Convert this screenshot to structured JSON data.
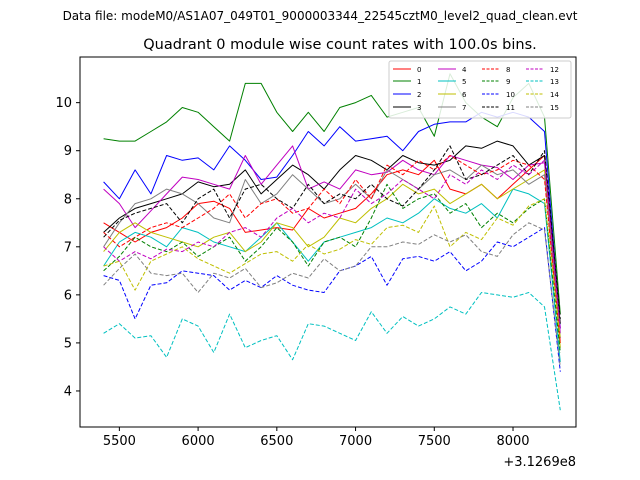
{
  "chart_data": {
    "type": "line",
    "suptitle": "Data file: modeM0/AS1A07_049T01_9000003344_22545cztM0_level2_quad_clean.evt",
    "title": "Quadrant 0 module wise count rates with 100.0s bins.",
    "xlabel": "",
    "ylabel": "",
    "x_offset_label": "+3.1269e8",
    "xlim": [
      5250,
      8400
    ],
    "ylim": [
      3.25,
      10.95
    ],
    "x_ticks": [
      5500,
      6000,
      6500,
      7000,
      7500,
      8000
    ],
    "y_ticks": [
      4,
      5,
      6,
      7,
      8,
      9,
      10
    ],
    "grid": false,
    "legend_position": "top-right",
    "x": [
      5400,
      5500,
      5600,
      5700,
      5800,
      5900,
      6000,
      6100,
      6200,
      6300,
      6400,
      6500,
      6600,
      6700,
      6800,
      6900,
      7000,
      7100,
      7200,
      7300,
      7400,
      7500,
      7600,
      7700,
      7800,
      7900,
      8000,
      8100,
      8200,
      8300
    ],
    "series": [
      {
        "name": "0",
        "color": "#ff0000",
        "dash": "solid",
        "values": [
          7.5,
          7.3,
          7.1,
          7.3,
          7.4,
          7.6,
          7.9,
          7.95,
          7.8,
          7.3,
          7.35,
          7.4,
          7.35,
          7.8,
          7.6,
          7.7,
          7.8,
          8.1,
          8.5,
          8.6,
          8.5,
          8.8,
          8.2,
          8.1,
          8.3,
          8.0,
          8.3,
          8.6,
          8.9,
          5.0
        ]
      },
      {
        "name": "1",
        "color": "#008000",
        "dash": "solid",
        "values": [
          9.25,
          9.2,
          9.2,
          9.4,
          9.6,
          9.9,
          9.8,
          9.5,
          9.2,
          10.4,
          10.4,
          9.8,
          9.4,
          9.8,
          9.4,
          9.9,
          10.0,
          10.15,
          9.7,
          9.8,
          9.9,
          9.3,
          10.6,
          10.0,
          9.7,
          9.5,
          10.1,
          10.4,
          9.7,
          5.6
        ]
      },
      {
        "name": "2",
        "color": "#0000ff",
        "dash": "solid",
        "values": [
          8.35,
          8.0,
          8.6,
          8.1,
          8.9,
          8.8,
          8.85,
          8.6,
          9.1,
          8.8,
          8.4,
          8.45,
          8.9,
          9.4,
          9.1,
          9.5,
          9.2,
          9.25,
          9.3,
          9.0,
          9.4,
          9.55,
          9.6,
          9.6,
          9.8,
          9.7,
          9.8,
          9.7,
          9.4,
          5.3
        ]
      },
      {
        "name": "3",
        "color": "#000000",
        "dash": "solid",
        "values": [
          7.3,
          7.6,
          7.8,
          7.9,
          8.0,
          8.1,
          8.35,
          8.25,
          8.3,
          8.6,
          8.1,
          8.4,
          8.7,
          8.5,
          8.2,
          8.6,
          8.9,
          8.8,
          8.6,
          8.9,
          8.75,
          8.7,
          8.8,
          9.1,
          9.05,
          9.2,
          9.1,
          8.7,
          8.9,
          5.4
        ]
      },
      {
        "name": "4",
        "color": "#c000c0",
        "dash": "solid",
        "values": [
          8.2,
          7.9,
          7.4,
          7.75,
          8.1,
          8.45,
          8.4,
          8.3,
          8.2,
          8.9,
          8.3,
          8.7,
          9.1,
          8.2,
          8.35,
          8.2,
          8.6,
          8.5,
          8.55,
          8.8,
          8.6,
          8.5,
          8.9,
          8.8,
          8.7,
          8.65,
          8.4,
          8.7,
          8.75,
          5.2
        ]
      },
      {
        "name": "5",
        "color": "#00c0c0",
        "dash": "solid",
        "values": [
          6.6,
          7.1,
          7.3,
          7.2,
          7.0,
          7.4,
          7.3,
          7.1,
          7.0,
          6.9,
          7.2,
          7.5,
          7.1,
          6.7,
          7.1,
          7.2,
          7.3,
          7.4,
          7.6,
          7.5,
          7.7,
          8.0,
          7.8,
          7.7,
          7.9,
          7.6,
          8.2,
          8.1,
          7.9,
          4.6
        ]
      },
      {
        "name": "6",
        "color": "#bfbf00",
        "dash": "solid",
        "values": [
          6.9,
          7.3,
          7.5,
          7.3,
          7.2,
          7.1,
          7.0,
          7.2,
          7.3,
          6.9,
          7.1,
          7.5,
          7.4,
          7.0,
          7.2,
          7.6,
          7.5,
          7.8,
          8.0,
          8.3,
          8.1,
          8.2,
          7.9,
          8.1,
          8.3,
          8.0,
          8.2,
          8.4,
          8.6,
          4.9
        ]
      },
      {
        "name": "7",
        "color": "#808080",
        "dash": "solid",
        "values": [
          7.0,
          7.5,
          7.9,
          8.0,
          8.2,
          8.1,
          7.9,
          7.6,
          7.5,
          8.4,
          7.9,
          8.1,
          8.5,
          8.2,
          7.9,
          8.0,
          8.3,
          8.0,
          8.6,
          8.4,
          8.2,
          8.5,
          8.6,
          8.4,
          8.7,
          8.5,
          8.6,
          8.3,
          8.5,
          5.1
        ]
      },
      {
        "name": "8",
        "color": "#ff0000",
        "dash": "dashed",
        "values": [
          7.3,
          7.0,
          7.2,
          7.4,
          7.5,
          7.4,
          7.6,
          7.8,
          8.1,
          7.6,
          7.9,
          8.0,
          7.7,
          7.8,
          8.2,
          7.9,
          8.4,
          8.0,
          8.7,
          8.5,
          8.8,
          8.6,
          8.9,
          8.7,
          8.5,
          8.6,
          8.8,
          8.7,
          8.4,
          5.0
        ]
      },
      {
        "name": "9",
        "color": "#008000",
        "dash": "dashed",
        "values": [
          6.5,
          6.8,
          7.2,
          7.0,
          6.9,
          7.1,
          6.8,
          7.0,
          7.2,
          6.7,
          7.0,
          7.4,
          7.1,
          6.6,
          7.1,
          7.2,
          7.0,
          7.6,
          8.3,
          7.8,
          8.0,
          8.1,
          7.7,
          7.9,
          7.4,
          7.7,
          7.5,
          7.8,
          8.0,
          4.8
        ]
      },
      {
        "name": "10",
        "color": "#0000ff",
        "dash": "dashed",
        "values": [
          6.4,
          6.3,
          5.5,
          6.2,
          6.25,
          6.5,
          6.45,
          6.4,
          6.1,
          6.3,
          6.15,
          6.4,
          6.2,
          6.1,
          6.05,
          6.5,
          6.6,
          6.8,
          6.2,
          6.75,
          6.8,
          6.7,
          6.9,
          6.5,
          6.7,
          7.1,
          7.0,
          7.2,
          7.4,
          4.4
        ]
      },
      {
        "name": "11",
        "color": "#000000",
        "dash": "dashed",
        "values": [
          7.2,
          7.55,
          7.7,
          7.8,
          7.9,
          7.5,
          8.0,
          8.2,
          7.6,
          8.2,
          8.3,
          8.0,
          7.8,
          8.3,
          7.9,
          8.1,
          8.0,
          8.3,
          8.0,
          7.85,
          8.2,
          8.6,
          9.1,
          8.4,
          8.5,
          8.7,
          8.9,
          8.5,
          9.0,
          5.5
        ]
      },
      {
        "name": "12",
        "color": "#c000c0",
        "dash": "dashed",
        "values": [
          7.0,
          6.7,
          6.9,
          6.75,
          6.95,
          6.9,
          7.1,
          7.0,
          7.3,
          7.4,
          7.2,
          7.6,
          7.8,
          7.5,
          7.7,
          7.6,
          8.2,
          7.9,
          8.1,
          8.4,
          8.2,
          8.0,
          8.5,
          8.3,
          8.6,
          8.4,
          8.7,
          8.5,
          8.8,
          5.3
        ]
      },
      {
        "name": "13",
        "color": "#00c0c0",
        "dash": "dashed",
        "values": [
          5.2,
          5.4,
          5.1,
          5.15,
          4.7,
          5.5,
          5.35,
          4.8,
          5.6,
          4.9,
          5.05,
          5.15,
          4.65,
          5.4,
          5.35,
          5.2,
          5.05,
          5.65,
          5.2,
          5.55,
          5.35,
          5.5,
          5.75,
          5.6,
          6.05,
          6.0,
          5.95,
          6.05,
          5.75,
          3.6
        ]
      },
      {
        "name": "14",
        "color": "#bfbf00",
        "dash": "dashed",
        "values": [
          6.6,
          6.7,
          6.1,
          6.7,
          6.85,
          7.0,
          6.75,
          6.6,
          6.45,
          6.65,
          6.85,
          6.9,
          6.7,
          7.05,
          6.85,
          6.95,
          7.15,
          7.05,
          7.4,
          7.45,
          7.3,
          7.85,
          7.0,
          7.3,
          7.15,
          7.6,
          7.45,
          7.85,
          8.0,
          5.1
        ]
      },
      {
        "name": "15",
        "color": "#808080",
        "dash": "dashed",
        "values": [
          6.2,
          6.55,
          6.85,
          6.45,
          6.4,
          6.45,
          6.05,
          6.45,
          6.35,
          6.55,
          6.15,
          6.25,
          6.45,
          6.35,
          6.75,
          6.5,
          6.6,
          7.0,
          7.0,
          7.1,
          7.05,
          7.25,
          7.1,
          7.25,
          6.9,
          6.8,
          7.25,
          7.5,
          7.35,
          4.5
        ]
      }
    ]
  }
}
